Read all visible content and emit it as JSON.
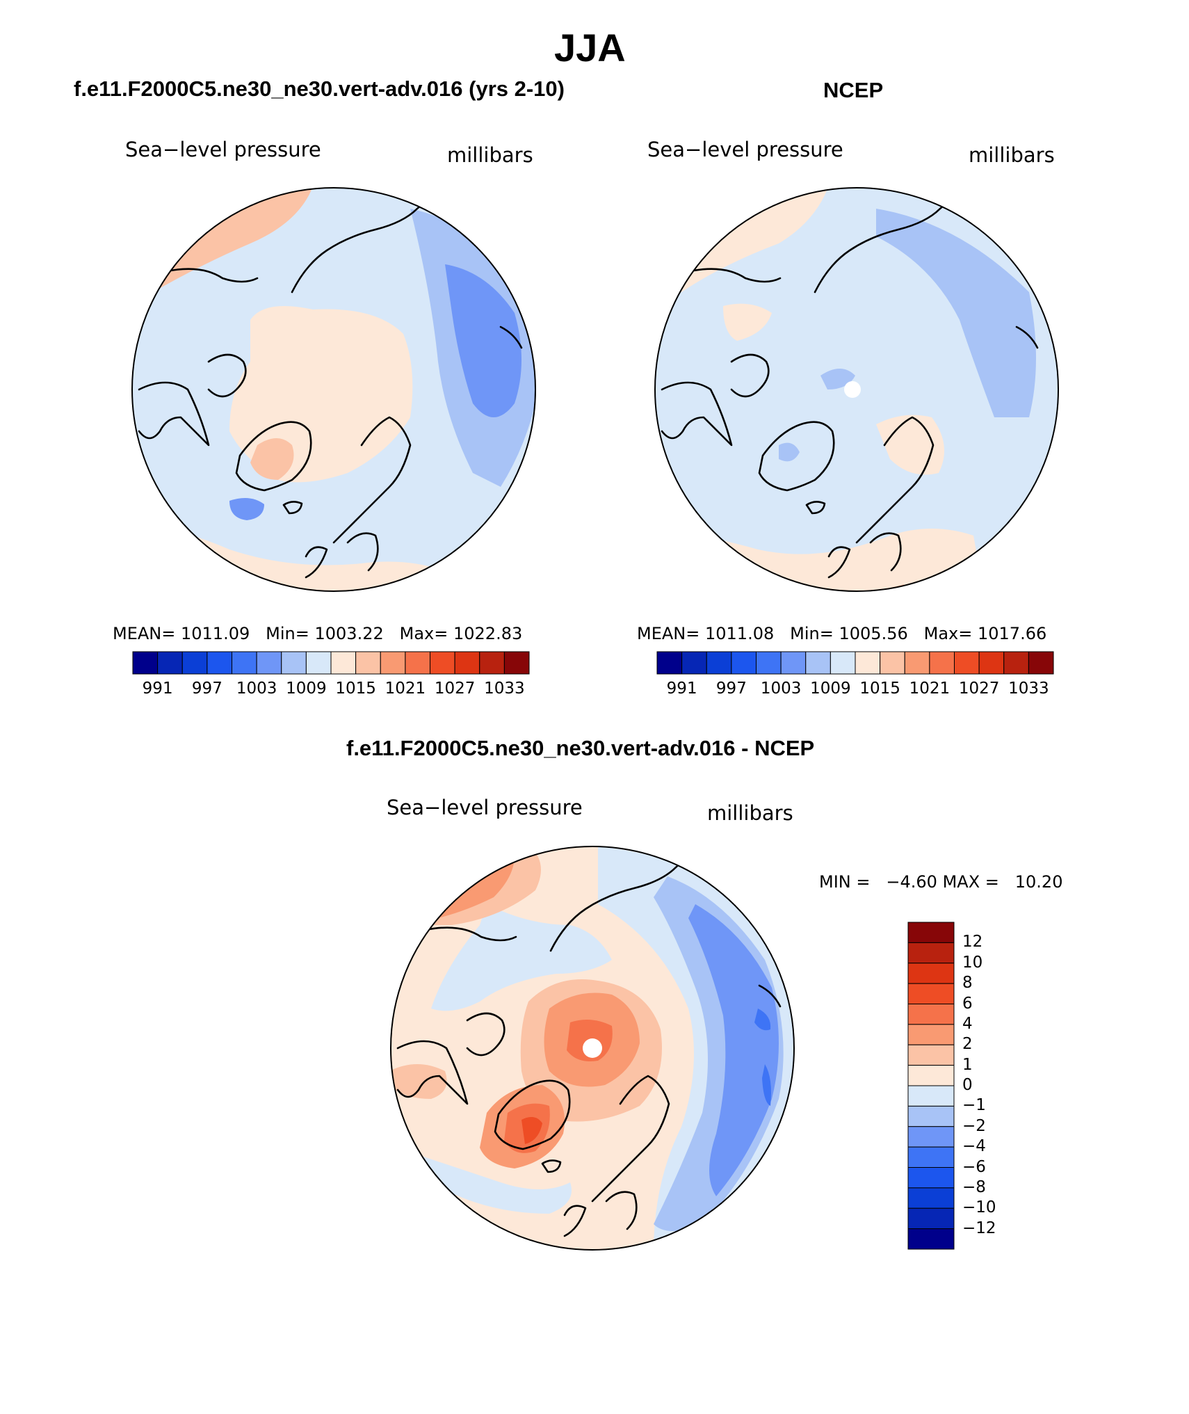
{
  "figure": {
    "title": "JJA",
    "panel_left_title": "f.e11.F2000C5.ne30_ne30.vert-adv.016 (yrs 2-10)",
    "panel_right_title": "NCEP",
    "panel_bottom_title": "f.e11.F2000C5.ne30_ne30.vert-adv.016 - NCEP"
  },
  "panels": [
    {
      "variable": "Sea−level pressure",
      "units": "millibars",
      "stats": {
        "mean_label": "MEAN=",
        "mean": "1011.09",
        "min_label": "Min=",
        "min": "1003.22",
        "max_label": "Max=",
        "max": "1022.83"
      }
    },
    {
      "variable": "Sea−level pressure",
      "units": "millibars",
      "stats": {
        "mean_label": "MEAN=",
        "mean": "1011.08",
        "min_label": "Min=",
        "min": "1005.56",
        "max_label": "Max=",
        "max": "1017.66"
      }
    },
    {
      "variable": "Sea−level pressure",
      "units": "millibars",
      "stats": {
        "min_label": "MIN =",
        "min": "−4.60",
        "max_label": "MAX =",
        "max": "10.20"
      }
    }
  ],
  "colorbar_abs": {
    "colors": [
      "#00008b",
      "#0626b5",
      "#0b3fd6",
      "#1c56ee",
      "#3e74f5",
      "#6f96f7",
      "#a8c3f6",
      "#d8e8f9",
      "#fde8d8",
      "#fbc3a6",
      "#f99a72",
      "#f5724a",
      "#ee4d25",
      "#dd3513",
      "#b8220f",
      "#870608"
    ],
    "tick_labels": [
      "991",
      "997",
      "1003",
      "1009",
      "1015",
      "1021",
      "1027",
      "1033"
    ]
  },
  "colorbar_diff": {
    "colors_top_to_bottom": [
      "#870608",
      "#b8220f",
      "#dd3513",
      "#ee4d25",
      "#f5724a",
      "#f99a72",
      "#fbc3a6",
      "#fde8d8",
      "#d8e8f9",
      "#a8c3f6",
      "#6f96f7",
      "#3e74f5",
      "#1c56ee",
      "#0b3fd6",
      "#0626b5",
      "#00008b"
    ],
    "tick_labels": [
      "12",
      "10",
      "8",
      "6",
      "4",
      "2",
      "1",
      "0",
      "−1",
      "−2",
      "−4",
      "−6",
      "−8",
      "−10",
      "−12"
    ]
  },
  "map_data": {
    "projection": "north-polar-stereographic",
    "region": "Arctic",
    "coastlines": true,
    "fill": "filled-contours"
  }
}
